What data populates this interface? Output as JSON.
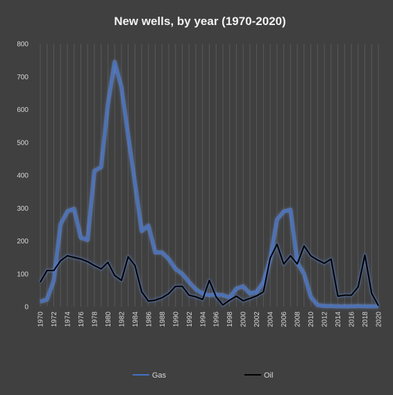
{
  "chart_data": {
    "type": "line",
    "title": "New wells, by year (1970-2020)",
    "xlabel": "",
    "ylabel": "",
    "ylim": [
      0,
      800
    ],
    "yticks": [
      0,
      100,
      200,
      300,
      400,
      500,
      600,
      700,
      800
    ],
    "x": [
      1970,
      1971,
      1972,
      1973,
      1974,
      1975,
      1976,
      1977,
      1978,
      1979,
      1980,
      1981,
      1982,
      1983,
      1984,
      1985,
      1986,
      1987,
      1988,
      1989,
      1990,
      1991,
      1992,
      1993,
      1994,
      1995,
      1996,
      1997,
      1998,
      1999,
      2000,
      2001,
      2002,
      2003,
      2004,
      2005,
      2006,
      2007,
      2008,
      2009,
      2010,
      2011,
      2012,
      2013,
      2014,
      2015,
      2016,
      2017,
      2018,
      2019,
      2020
    ],
    "xtick_labels": [
      "1970",
      "1972",
      "1974",
      "1976",
      "1978",
      "1980",
      "1982",
      "1984",
      "1986",
      "1988",
      "1990",
      "1992",
      "1994",
      "1996",
      "1998",
      "2000",
      "2002",
      "2004",
      "2006",
      "2008",
      "2010",
      "2012",
      "2014",
      "2016",
      "2018",
      "2020"
    ],
    "grid": "vertical",
    "legend_position": "bottom",
    "series": [
      {
        "name": "Gas",
        "color": "#4472c4",
        "values": [
          15,
          22,
          80,
          250,
          290,
          298,
          210,
          203,
          413,
          425,
          615,
          745,
          668,
          520,
          375,
          230,
          247,
          165,
          165,
          145,
          115,
          100,
          75,
          53,
          40,
          35,
          37,
          35,
          28,
          55,
          62,
          40,
          45,
          75,
          145,
          265,
          290,
          295,
          135,
          100,
          30,
          5,
          2,
          2,
          1,
          1,
          1,
          2,
          1,
          1,
          1
        ]
      },
      {
        "name": "Oil",
        "color": "#000000",
        "values": [
          75,
          110,
          110,
          140,
          155,
          150,
          145,
          137,
          125,
          115,
          135,
          95,
          80,
          152,
          125,
          45,
          17,
          20,
          27,
          40,
          62,
          62,
          35,
          30,
          22,
          80,
          30,
          5,
          20,
          32,
          18,
          25,
          33,
          45,
          148,
          190,
          130,
          155,
          130,
          185,
          155,
          142,
          132,
          145,
          32,
          35,
          35,
          60,
          157,
          40,
          3
        ]
      }
    ]
  }
}
